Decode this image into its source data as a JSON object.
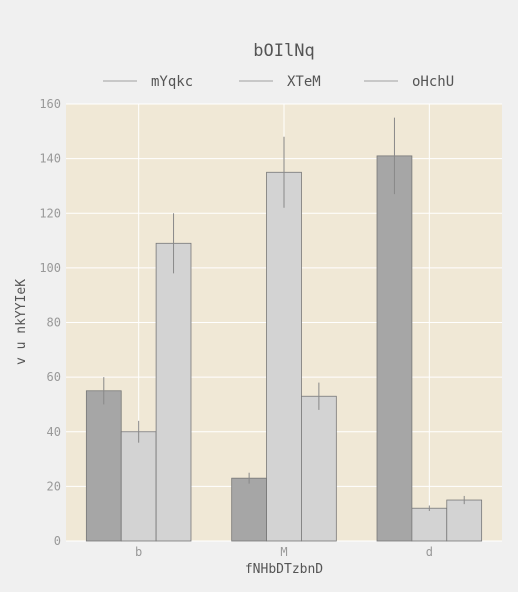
{
  "chart_data": {
    "type": "bar",
    "title": "bOIlNq",
    "xlabel": "fNHbDTzbnD",
    "ylabel": "v  u nkYYIeK",
    "categories": [
      "b",
      "M",
      "d"
    ],
    "ylim": [
      0,
      160
    ],
    "yticks": [
      0,
      20,
      40,
      60,
      80,
      100,
      120,
      140,
      160
    ],
    "grid": true,
    "legend_position": "top",
    "series": [
      {
        "name": "mYqkc",
        "values": [
          55,
          23,
          141
        ],
        "errors": [
          5,
          2,
          14
        ],
        "color": "#a6a6a6"
      },
      {
        "name": "XTeM",
        "values": [
          40,
          135,
          12
        ],
        "errors": [
          4,
          13,
          1
        ],
        "color": "#d3d3d3"
      },
      {
        "name": "oHchU",
        "values": [
          109,
          53,
          15
        ],
        "errors": [
          11,
          5,
          1.5
        ],
        "color": "#d3d3d3"
      }
    ],
    "colors": {
      "background": "#f0f0f0",
      "plot_background": "#f0e8d6",
      "grid": "#ffffff",
      "text": "#555555",
      "tick_text": "#999999",
      "bar_edge": "#777777",
      "error_bar": "#888888",
      "legend_line": "#bbbbbb"
    }
  }
}
